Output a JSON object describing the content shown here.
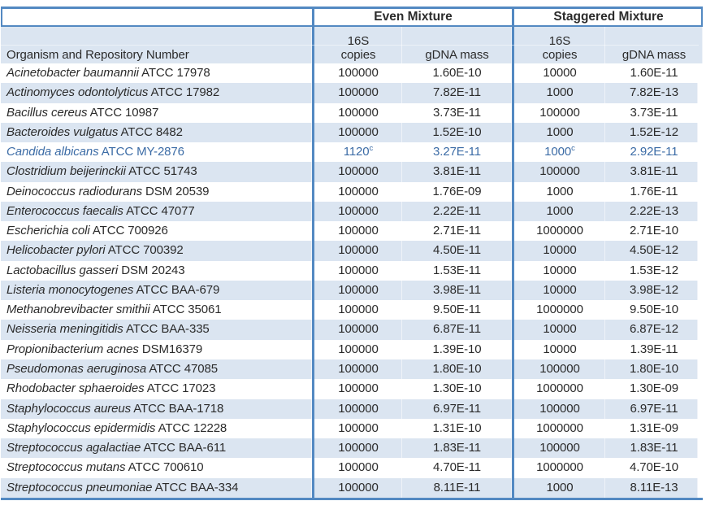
{
  "colors": {
    "table_border": "#5389C2",
    "row_band": "#DBE5F1",
    "body_text": "#2B2B2B",
    "highlight_row_text": "#3C6CA6"
  },
  "table": {
    "group_headers": {
      "even": "Even Mixture",
      "staggered": "Staggered Mixture"
    },
    "column_headers": {
      "organism": "Organism and Repository Number",
      "copies_line1": "16S",
      "copies_line2": "copies",
      "even_mass": "gDNA mass",
      "staggered_mass": "gDNA mass"
    },
    "rows": [
      {
        "species": "Acinetobacter baumannii",
        "repository": "ATCC 17978",
        "even_copies": "100000",
        "even_copies_sup": "",
        "even_mass": "1.60E-10",
        "stag_copies": "10000",
        "stag_copies_sup": "",
        "stag_mass": "1.60E-11",
        "highlight": false
      },
      {
        "species": "Actinomyces odontolyticus",
        "repository": "ATCC 17982",
        "even_copies": "100000",
        "even_copies_sup": "",
        "even_mass": "7.82E-11",
        "stag_copies": "1000",
        "stag_copies_sup": "",
        "stag_mass": "7.82E-13",
        "highlight": false
      },
      {
        "species": "Bacillus cereus",
        "repository": "ATCC 10987",
        "even_copies": "100000",
        "even_copies_sup": "",
        "even_mass": "3.73E-11",
        "stag_copies": "100000",
        "stag_copies_sup": "",
        "stag_mass": "3.73E-11",
        "highlight": false
      },
      {
        "species": "Bacteroides vulgatus",
        "repository": "ATCC 8482",
        "even_copies": "100000",
        "even_copies_sup": "",
        "even_mass": "1.52E-10",
        "stag_copies": "1000",
        "stag_copies_sup": "",
        "stag_mass": "1.52E-12",
        "highlight": false
      },
      {
        "species": "Candida albicans",
        "repository": "ATCC MY-2876",
        "even_copies": "1120",
        "even_copies_sup": "c",
        "even_mass": "3.27E-11",
        "stag_copies": "1000",
        "stag_copies_sup": "c",
        "stag_mass": "2.92E-11",
        "highlight": true
      },
      {
        "species": "Clostridium beijerinckii",
        "repository": "ATCC 51743",
        "even_copies": "100000",
        "even_copies_sup": "",
        "even_mass": "3.81E-11",
        "stag_copies": "100000",
        "stag_copies_sup": "",
        "stag_mass": "3.81E-11",
        "highlight": false
      },
      {
        "species": "Deinococcus radiodurans",
        "repository": "DSM 20539",
        "even_copies": "100000",
        "even_copies_sup": "",
        "even_mass": "1.76E-09",
        "stag_copies": "1000",
        "stag_copies_sup": "",
        "stag_mass": "1.76E-11",
        "highlight": false
      },
      {
        "species": "Enterococcus faecalis",
        "repository": "ATCC 47077",
        "even_copies": "100000",
        "even_copies_sup": "",
        "even_mass": "2.22E-11",
        "stag_copies": "1000",
        "stag_copies_sup": "",
        "stag_mass": "2.22E-13",
        "highlight": false
      },
      {
        "species": "Escherichia coli",
        "repository": "ATCC 700926",
        "even_copies": "100000",
        "even_copies_sup": "",
        "even_mass": "2.71E-11",
        "stag_copies": "1000000",
        "stag_copies_sup": "",
        "stag_mass": "2.71E-10",
        "highlight": false
      },
      {
        "species": "Helicobacter pylori",
        "repository": "ATCC 700392",
        "even_copies": "100000",
        "even_copies_sup": "",
        "even_mass": "4.50E-11",
        "stag_copies": "10000",
        "stag_copies_sup": "",
        "stag_mass": "4.50E-12",
        "highlight": false
      },
      {
        "species": "Lactobacillus gasseri",
        "repository": "DSM 20243",
        "even_copies": "100000",
        "even_copies_sup": "",
        "even_mass": "1.53E-11",
        "stag_copies": "10000",
        "stag_copies_sup": "",
        "stag_mass": "1.53E-12",
        "highlight": false
      },
      {
        "species": "Listeria monocytogenes",
        "repository": "ATCC BAA-679",
        "even_copies": "100000",
        "even_copies_sup": "",
        "even_mass": "3.98E-11",
        "stag_copies": "10000",
        "stag_copies_sup": "",
        "stag_mass": "3.98E-12",
        "highlight": false
      },
      {
        "species": "Methanobrevibacter smithii",
        "repository": "ATCC 35061",
        "even_copies": "100000",
        "even_copies_sup": "",
        "even_mass": "9.50E-11",
        "stag_copies": "1000000",
        "stag_copies_sup": "",
        "stag_mass": "9.50E-10",
        "highlight": false
      },
      {
        "species": "Neisseria meningitidis",
        "repository": "ATCC BAA-335",
        "even_copies": "100000",
        "even_copies_sup": "",
        "even_mass": "6.87E-11",
        "stag_copies": "10000",
        "stag_copies_sup": "",
        "stag_mass": "6.87E-12",
        "highlight": false
      },
      {
        "species": "Propionibacterium acnes",
        "repository": "DSM16379",
        "even_copies": "100000",
        "even_copies_sup": "",
        "even_mass": "1.39E-10",
        "stag_copies": "10000",
        "stag_copies_sup": "",
        "stag_mass": "1.39E-11",
        "highlight": false
      },
      {
        "species": "Pseudomonas aeruginosa",
        "repository": "ATCC 47085",
        "even_copies": "100000",
        "even_copies_sup": "",
        "even_mass": "1.80E-10",
        "stag_copies": "100000",
        "stag_copies_sup": "",
        "stag_mass": "1.80E-10",
        "highlight": false
      },
      {
        "species": "Rhodobacter sphaeroides",
        "repository": "ATCC 17023",
        "even_copies": "100000",
        "even_copies_sup": "",
        "even_mass": "1.30E-10",
        "stag_copies": "1000000",
        "stag_copies_sup": "",
        "stag_mass": "1.30E-09",
        "highlight": false
      },
      {
        "species": "Staphylococcus aureus",
        "repository": "ATCC BAA-1718",
        "even_copies": "100000",
        "even_copies_sup": "",
        "even_mass": "6.97E-11",
        "stag_copies": "100000",
        "stag_copies_sup": "",
        "stag_mass": "6.97E-11",
        "highlight": false
      },
      {
        "species": "Staphylococcus epidermidis",
        "repository": "ATCC 12228",
        "even_copies": "100000",
        "even_copies_sup": "",
        "even_mass": "1.31E-10",
        "stag_copies": "1000000",
        "stag_copies_sup": "",
        "stag_mass": "1.31E-09",
        "highlight": false
      },
      {
        "species": "Streptococcus agalactiae",
        "repository": "ATCC BAA-611",
        "even_copies": "100000",
        "even_copies_sup": "",
        "even_mass": "1.83E-11",
        "stag_copies": "100000",
        "stag_copies_sup": "",
        "stag_mass": "1.83E-11",
        "highlight": false
      },
      {
        "species": "Streptococcus mutans",
        "repository": "ATCC 700610",
        "even_copies": "100000",
        "even_copies_sup": "",
        "even_mass": "4.70E-11",
        "stag_copies": "1000000",
        "stag_copies_sup": "",
        "stag_mass": "4.70E-10",
        "highlight": false
      },
      {
        "species": "Streptococcus pneumoniae",
        "repository": "ATCC BAA-334",
        "even_copies": "100000",
        "even_copies_sup": "",
        "even_mass": "8.11E-11",
        "stag_copies": "1000",
        "stag_copies_sup": "",
        "stag_mass": "8.11E-13",
        "highlight": false
      }
    ]
  }
}
